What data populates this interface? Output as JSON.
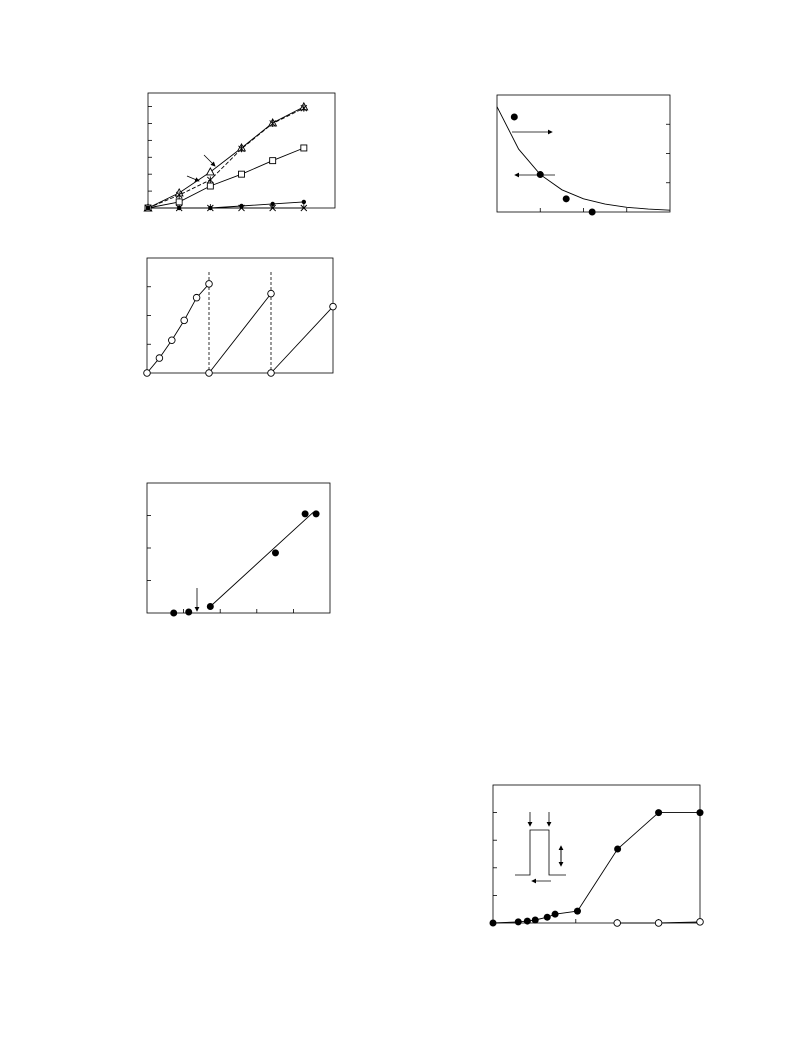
{
  "chart_data": [
    {
      "type": "line",
      "xlim": [
        0,
        6
      ],
      "ylim": [
        0,
        6.8
      ],
      "xticks": [
        1,
        2,
        3,
        4,
        5
      ],
      "yticks": [
        1,
        2,
        3,
        4,
        5,
        6
      ],
      "series": [
        {
          "color": "#000000",
          "marker": "triangle",
          "dash": false,
          "x": [
            0,
            1,
            2,
            3,
            4,
            5
          ],
          "values": [
            0,
            0.89,
            2.13,
            3.55,
            5.03,
            5.98
          ]
        },
        {
          "color": "#000000",
          "marker": "asterisk",
          "dash": true,
          "x": [
            0,
            1,
            2,
            3,
            4,
            5
          ],
          "values": [
            0,
            0.77,
            1.66,
            3.5,
            5.0,
            5.9
          ]
        },
        {
          "color": "#000000",
          "marker": "square",
          "dash": false,
          "x": [
            0,
            1,
            2,
            3,
            4,
            5
          ],
          "values": [
            0,
            0.36,
            1.3,
            2.0,
            2.8,
            3.55
          ]
        },
        {
          "color": "#000000",
          "marker": "dot",
          "dash": false,
          "x": [
            0,
            1,
            2,
            3,
            4,
            5
          ],
          "values": [
            0,
            0,
            0,
            0.12,
            0.24,
            0.36
          ]
        },
        {
          "color": "#000000",
          "marker": "x",
          "dash": false,
          "x": [
            0,
            1,
            2,
            3,
            4,
            5
          ],
          "values": [
            0,
            0,
            0,
            0,
            0,
            0
          ]
        }
      ]
    },
    {
      "type": "scatter",
      "xlim": [
        0,
        4
      ],
      "ylim": [
        0,
        4
      ],
      "xticks": [
        1,
        2,
        3
      ],
      "yticks": [
        1,
        2,
        3
      ],
      "y_tick_side": "right",
      "series": [
        {
          "color": "#000000",
          "marker": "circle-filled",
          "line": false,
          "x": [
            0.4,
            1.0,
            1.6,
            2.2
          ],
          "values": [
            3.25,
            1.28,
            0.45,
            0
          ]
        },
        {
          "color": "#000000",
          "marker": "none",
          "line": true,
          "x": [
            0,
            0.5,
            1,
            1.5,
            2,
            2.5,
            3,
            3.5,
            4
          ],
          "values": [
            3.6,
            2.15,
            1.28,
            0.76,
            0.45,
            0.27,
            0.16,
            0.1,
            0.06
          ]
        }
      ]
    },
    {
      "type": "line",
      "xlim": [
        0,
        15
      ],
      "ylim": [
        0,
        4
      ],
      "xticks": [],
      "yticks": [
        1,
        2,
        3
      ],
      "vlines": [
        5,
        10
      ],
      "series": [
        {
          "color": "#000000",
          "marker": "circle-open",
          "line": true,
          "x": [
            0,
            1,
            2,
            3,
            4,
            5
          ],
          "values": [
            0,
            0.52,
            1.14,
            1.83,
            2.62,
            3.1
          ]
        },
        {
          "color": "#000000",
          "marker": "circle-open",
          "line": true,
          "x": [
            5,
            10
          ],
          "values": [
            0,
            2.76
          ]
        },
        {
          "color": "#000000",
          "marker": "circle-open",
          "line": true,
          "x": [
            10,
            15
          ],
          "values": [
            0,
            2.31
          ]
        }
      ]
    },
    {
      "type": "scatter",
      "xlim": [
        0,
        5
      ],
      "ylim": [
        0,
        4
      ],
      "xticks": [
        1,
        2,
        3,
        4
      ],
      "yticks": [
        1,
        2,
        3
      ],
      "series": [
        {
          "color": "#000000",
          "marker": "circle-filled",
          "line": false,
          "x": [
            0.73,
            1.14,
            1.73,
            3.51,
            4.32,
            4.62
          ],
          "values": [
            0,
            0.03,
            0.2,
            1.85,
            3.05,
            3.05
          ]
        },
        {
          "color": "#000000",
          "marker": "none",
          "line": true,
          "x": [
            1.73,
            4.54
          ],
          "values": [
            0.2,
            3.1
          ]
        }
      ]
    },
    {
      "type": "line",
      "xlim": [
        0,
        5
      ],
      "ylim": [
        0,
        5
      ],
      "xticks": [
        1,
        2,
        3,
        4
      ],
      "yticks": [
        1,
        2,
        3,
        4
      ],
      "series": [
        {
          "color": "#000000",
          "marker": "circle-filled",
          "line": true,
          "x": [
            0,
            0.61,
            0.83,
            1.02,
            1.31,
            1.5,
            2.04,
            3.01,
            4.0,
            5.0
          ],
          "values": [
            0,
            0.04,
            0.07,
            0.11,
            0.21,
            0.32,
            0.43,
            2.68,
            4.0,
            4.0
          ]
        },
        {
          "color": "#000000",
          "marker": "circle-open",
          "line": true,
          "x": [
            3,
            4,
            5
          ],
          "values": [
            0,
            0,
            0.04
          ]
        }
      ]
    }
  ]
}
